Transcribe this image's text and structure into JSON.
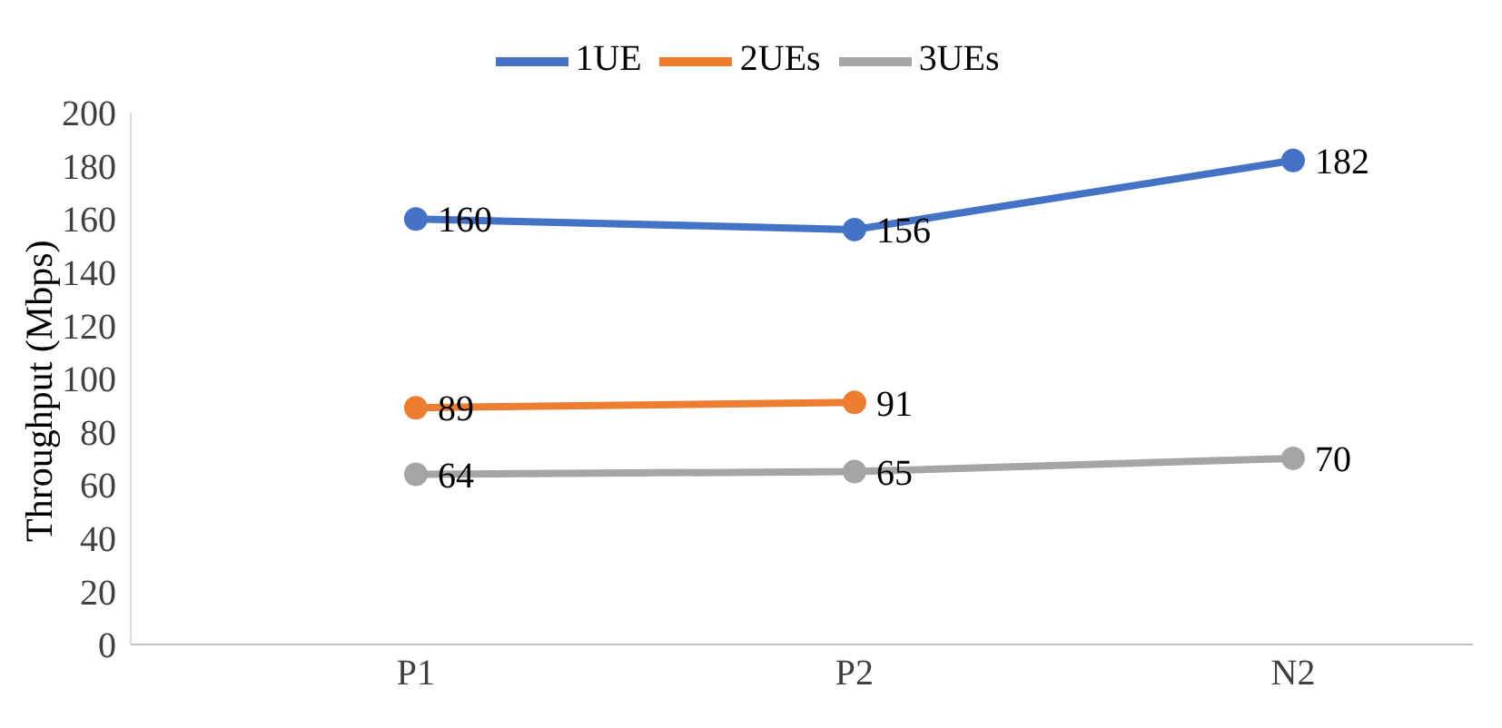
{
  "chart_data": {
    "type": "line",
    "ylabel": "Throughput (Mbps)",
    "categories": [
      "P1",
      "P2",
      "N2"
    ],
    "series": [
      {
        "name": "1UE",
        "color": "#4472c4",
        "values": [
          160,
          156,
          182
        ]
      },
      {
        "name": "2UEs",
        "color": "#ed7d31",
        "values": [
          89,
          91,
          null
        ]
      },
      {
        "name": "3UEs",
        "color": "#a5a5a5",
        "values": [
          64,
          65,
          70
        ]
      }
    ],
    "ylim": [
      0,
      200
    ],
    "yticks": [
      0,
      20,
      40,
      60,
      80,
      100,
      120,
      140,
      160,
      180,
      200
    ],
    "grid": false,
    "legend": "top",
    "marker": "circle",
    "line_style": "solid",
    "data_labels": true
  }
}
